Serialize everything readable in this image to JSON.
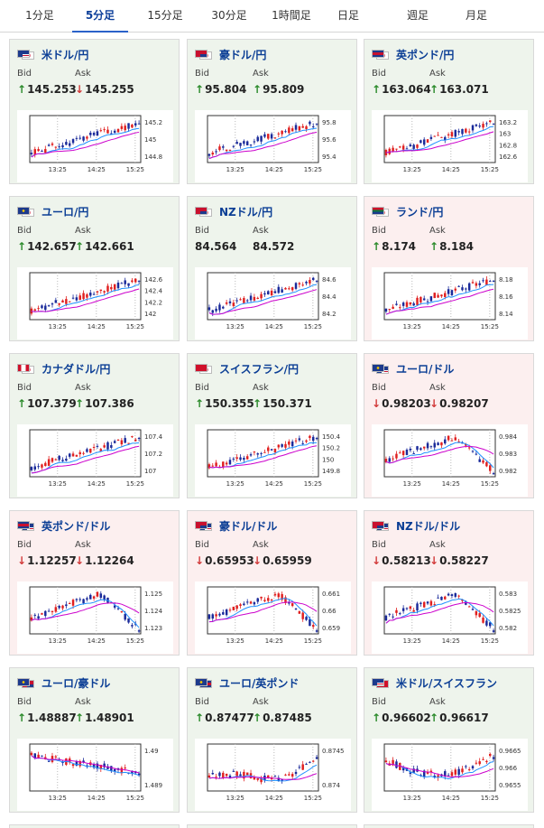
{
  "tabs": [
    {
      "label": "1分足",
      "active": false
    },
    {
      "label": "5分足",
      "active": true
    },
    {
      "label": "15分足",
      "active": false
    },
    {
      "label": "30分足",
      "active": false
    },
    {
      "label": "1時間足",
      "active": false
    },
    {
      "label": "日足",
      "active": false
    },
    {
      "label": "週足",
      "active": false
    },
    {
      "label": "月足",
      "active": false
    }
  ],
  "bid_label": "Bid",
  "ask_label": "Ask",
  "time_labels": [
    "13:25",
    "14:25",
    "15:25"
  ],
  "colors": {
    "up_candle": "#e02020",
    "down_candle": "#1a2a9a",
    "ma_short": "#1e90ff",
    "ma_long": "#cc00cc",
    "up_arrow": "#2a8a2a",
    "down_arrow": "#d23a3a"
  },
  "pairs": [
    {
      "name": "米ドル/円",
      "flags": [
        "us",
        "jp"
      ],
      "trend": "up",
      "bid": "145.253",
      "ask": "145.255",
      "bid_dir": "up",
      "ask_dir": "down",
      "y_ticks": [
        "145.2",
        "145",
        "144.8"
      ],
      "pattern": "up",
      "seed": 1
    },
    {
      "name": "豪ドル/円",
      "flags": [
        "au",
        "jp"
      ],
      "trend": "up",
      "bid": "95.804",
      "ask": "95.809",
      "bid_dir": "up",
      "ask_dir": "up",
      "y_ticks": [
        "95.8",
        "95.6",
        "95.4"
      ],
      "pattern": "up",
      "seed": 2
    },
    {
      "name": "英ポンド/円",
      "flags": [
        "gb",
        "jp"
      ],
      "trend": "up",
      "bid": "163.064",
      "ask": "163.071",
      "bid_dir": "up",
      "ask_dir": "up",
      "y_ticks": [
        "163.2",
        "163",
        "162.8",
        "162.6"
      ],
      "pattern": "up",
      "seed": 3
    },
    {
      "name": "ユーロ/円",
      "flags": [
        "eu",
        "jp"
      ],
      "trend": "up",
      "bid": "142.657",
      "ask": "142.661",
      "bid_dir": "up",
      "ask_dir": "up",
      "y_ticks": [
        "142.6",
        "142.4",
        "142.2",
        "142"
      ],
      "pattern": "up",
      "seed": 4
    },
    {
      "name": "NZドル/円",
      "flags": [
        "nz",
        "jp"
      ],
      "trend": "up",
      "bid": "84.564",
      "ask": "84.572",
      "bid_dir": "none",
      "ask_dir": "none",
      "y_ticks": [
        "84.6",
        "84.4",
        "84.2"
      ],
      "pattern": "up",
      "seed": 5
    },
    {
      "name": "ランド/円",
      "flags": [
        "za",
        "jp"
      ],
      "trend": "down",
      "bid": "8.174",
      "ask": "8.184",
      "bid_dir": "up",
      "ask_dir": "up",
      "y_ticks": [
        "8.18",
        "8.16",
        "8.14"
      ],
      "pattern": "up",
      "seed": 6
    },
    {
      "name": "カナダドル/円",
      "flags": [
        "ca",
        "jp"
      ],
      "trend": "up",
      "bid": "107.379",
      "ask": "107.386",
      "bid_dir": "up",
      "ask_dir": "up",
      "y_ticks": [
        "107.4",
        "107.2",
        "107"
      ],
      "pattern": "up",
      "seed": 7
    },
    {
      "name": "スイスフラン/円",
      "flags": [
        "ch",
        "jp"
      ],
      "trend": "up",
      "bid": "150.355",
      "ask": "150.371",
      "bid_dir": "up",
      "ask_dir": "up",
      "y_ticks": [
        "150.4",
        "150.2",
        "150",
        "149.8"
      ],
      "pattern": "up",
      "seed": 8
    },
    {
      "name": "ユーロ/ドル",
      "flags": [
        "eu",
        "us"
      ],
      "trend": "down",
      "bid": "0.98203",
      "ask": "0.98207",
      "bid_dir": "down",
      "ask_dir": "down",
      "y_ticks": [
        "0.984",
        "0.983",
        "0.982"
      ],
      "pattern": "humpdown",
      "seed": 9
    },
    {
      "name": "英ポンド/ドル",
      "flags": [
        "gb",
        "us"
      ],
      "trend": "down",
      "bid": "1.12257",
      "ask": "1.12264",
      "bid_dir": "down",
      "ask_dir": "down",
      "y_ticks": [
        "1.125",
        "1.124",
        "1.123"
      ],
      "pattern": "humpdown",
      "seed": 10
    },
    {
      "name": "豪ドル/ドル",
      "flags": [
        "au",
        "us"
      ],
      "trend": "down",
      "bid": "0.65953",
      "ask": "0.65959",
      "bid_dir": "down",
      "ask_dir": "down",
      "y_ticks": [
        "0.661",
        "0.66",
        "0.659"
      ],
      "pattern": "humpdown",
      "seed": 11
    },
    {
      "name": "NZドル/ドル",
      "flags": [
        "nz",
        "us"
      ],
      "trend": "down",
      "bid": "0.58213",
      "ask": "0.58227",
      "bid_dir": "down",
      "ask_dir": "down",
      "y_ticks": [
        "0.583",
        "0.5825",
        "0.582"
      ],
      "pattern": "humpdown",
      "seed": 12
    },
    {
      "name": "ユーロ/豪ドル",
      "flags": [
        "eu",
        "au"
      ],
      "trend": "up",
      "bid": "1.48887",
      "ask": "1.48901",
      "bid_dir": "up",
      "ask_dir": "up",
      "y_ticks": [
        "1.49",
        "1.489"
      ],
      "pattern": "down",
      "seed": 13
    },
    {
      "name": "ユーロ/英ポンド",
      "flags": [
        "eu",
        "gb"
      ],
      "trend": "up",
      "bid": "0.87477",
      "ask": "0.87485",
      "bid_dir": "up",
      "ask_dir": "up",
      "y_ticks": [
        "0.8745",
        "0.874"
      ],
      "pattern": "flatup",
      "seed": 14
    },
    {
      "name": "米ドル/スイスフラン",
      "flags": [
        "us",
        "ch"
      ],
      "trend": "up",
      "bid": "0.96602",
      "ask": "0.96617",
      "bid_dir": "up",
      "ask_dir": "up",
      "y_ticks": [
        "0.9665",
        "0.966",
        "0.9655"
      ],
      "pattern": "dip",
      "seed": 15
    }
  ]
}
